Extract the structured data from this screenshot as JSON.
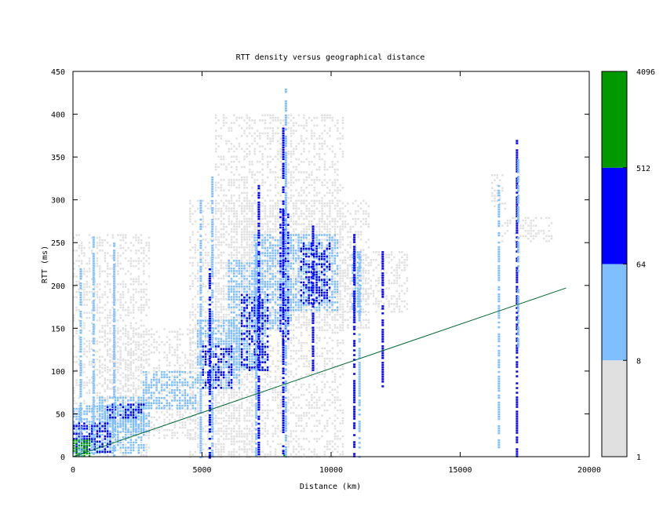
{
  "chart_data": {
    "type": "heatmap",
    "title": "RTT density versus geographical distance",
    "xlabel": "Distance (km)",
    "ylabel": "RTT (ms)",
    "xlim": [
      0,
      20000
    ],
    "ylim": [
      0,
      450
    ],
    "xticks": [
      0,
      5000,
      10000,
      15000,
      20000
    ],
    "yticks": [
      0,
      50,
      100,
      150,
      200,
      250,
      300,
      350,
      400,
      450
    ],
    "grid": false,
    "colorbar": {
      "scale": "log2",
      "ticks": [
        "1",
        "8",
        "64",
        "512",
        "4096"
      ],
      "bins": [
        {
          "from": 1,
          "to": 8,
          "color": "#e0e0e0"
        },
        {
          "from": 8,
          "to": 64,
          "color": "#80bfff"
        },
        {
          "from": 64,
          "to": 512,
          "color": "#0000ff"
        },
        {
          "from": 512,
          "to": 4096,
          "color": "#009900"
        }
      ]
    },
    "reference_line": {
      "color": "#006633",
      "points": [
        [
          0,
          0
        ],
        [
          19100,
          197
        ]
      ]
    },
    "density_regions": [
      {
        "level": 1,
        "x": [
          0,
          3000
        ],
        "y": [
          0,
          260
        ]
      },
      {
        "level": 1,
        "x": [
          1000,
          5000
        ],
        "y": [
          20,
          150
        ]
      },
      {
        "level": 1,
        "x": [
          4500,
          7000
        ],
        "y": [
          0,
          300
        ]
      },
      {
        "level": 1,
        "x": [
          5500,
          10500
        ],
        "y": [
          0,
          400
        ]
      },
      {
        "level": 1,
        "x": [
          6500,
          11500
        ],
        "y": [
          150,
          300
        ]
      },
      {
        "level": 1,
        "x": [
          10500,
          13000
        ],
        "y": [
          170,
          240
        ]
      },
      {
        "level": 1,
        "x": [
          16200,
          16800
        ],
        "y": [
          290,
          330
        ]
      },
      {
        "level": 1,
        "x": [
          16600,
          18600
        ],
        "y": [
          250,
          280
        ]
      },
      {
        "level": 2,
        "x": [
          0,
          2800
        ],
        "y": [
          5,
          60
        ]
      },
      {
        "level": 2,
        "x": [
          1000,
          3000
        ],
        "y": [
          30,
          70
        ]
      },
      {
        "level": 2,
        "x": [
          2700,
          4800
        ],
        "y": [
          55,
          100
        ]
      },
      {
        "level": 2,
        "x": [
          4800,
          6500
        ],
        "y": [
          80,
          160
        ]
      },
      {
        "level": 2,
        "x": [
          6000,
          7500
        ],
        "y": [
          100,
          230
        ]
      },
      {
        "level": 2,
        "x": [
          7000,
          8500
        ],
        "y": [
          150,
          260
        ]
      },
      {
        "level": 2,
        "x": [
          8000,
          10300
        ],
        "y": [
          170,
          260
        ]
      },
      {
        "level": 2,
        "x": [
          10800,
          11200
        ],
        "y": [
          170,
          240
        ]
      },
      {
        "level": 3,
        "x": [
          0,
          1500
        ],
        "y": [
          5,
          40
        ]
      },
      {
        "level": 3,
        "x": [
          1200,
          2800
        ],
        "y": [
          45,
          62
        ]
      },
      {
        "level": 3,
        "x": [
          5000,
          6200
        ],
        "y": [
          80,
          130
        ]
      },
      {
        "level": 3,
        "x": [
          6500,
          7600
        ],
        "y": [
          100,
          190
        ]
      },
      {
        "level": 3,
        "x": [
          8000,
          8400
        ],
        "y": [
          130,
          290
        ]
      },
      {
        "level": 3,
        "x": [
          8800,
          10000
        ],
        "y": [
          180,
          250
        ]
      },
      {
        "level": 4,
        "x": [
          0,
          700
        ],
        "y": [
          0,
          20
        ]
      },
      {
        "level": 4,
        "x": [
          8050,
          8200
        ],
        "y": [
          0,
          6
        ]
      }
    ],
    "vertical_streaks": [
      {
        "x": 300,
        "y": [
          0,
          220
        ],
        "level": 2
      },
      {
        "x": 800,
        "y": [
          0,
          260
        ],
        "level": 2
      },
      {
        "x": 1600,
        "y": [
          0,
          250
        ],
        "level": 2
      },
      {
        "x": 4950,
        "y": [
          0,
          300
        ],
        "level": 2
      },
      {
        "x": 5300,
        "y": [
          0,
          220
        ],
        "level": 3
      },
      {
        "x": 5400,
        "y": [
          0,
          330
        ],
        "level": 2
      },
      {
        "x": 7100,
        "y": [
          0,
          250
        ],
        "level": 2
      },
      {
        "x": 7200,
        "y": [
          0,
          320
        ],
        "level": 3
      },
      {
        "x": 8150,
        "y": [
          0,
          390
        ],
        "level": 3
      },
      {
        "x": 8250,
        "y": [
          0,
          430
        ],
        "level": 2
      },
      {
        "x": 9300,
        "y": [
          100,
          270
        ],
        "level": 3
      },
      {
        "x": 10900,
        "y": [
          0,
          260
        ],
        "level": 3
      },
      {
        "x": 11100,
        "y": [
          0,
          240
        ],
        "level": 2
      },
      {
        "x": 12000,
        "y": [
          80,
          240
        ],
        "level": 3
      },
      {
        "x": 16500,
        "y": [
          10,
          320
        ],
        "level": 2
      },
      {
        "x": 17200,
        "y": [
          0,
          370
        ],
        "level": 3
      },
      {
        "x": 17250,
        "y": [
          130,
          350
        ],
        "level": 2
      }
    ]
  }
}
